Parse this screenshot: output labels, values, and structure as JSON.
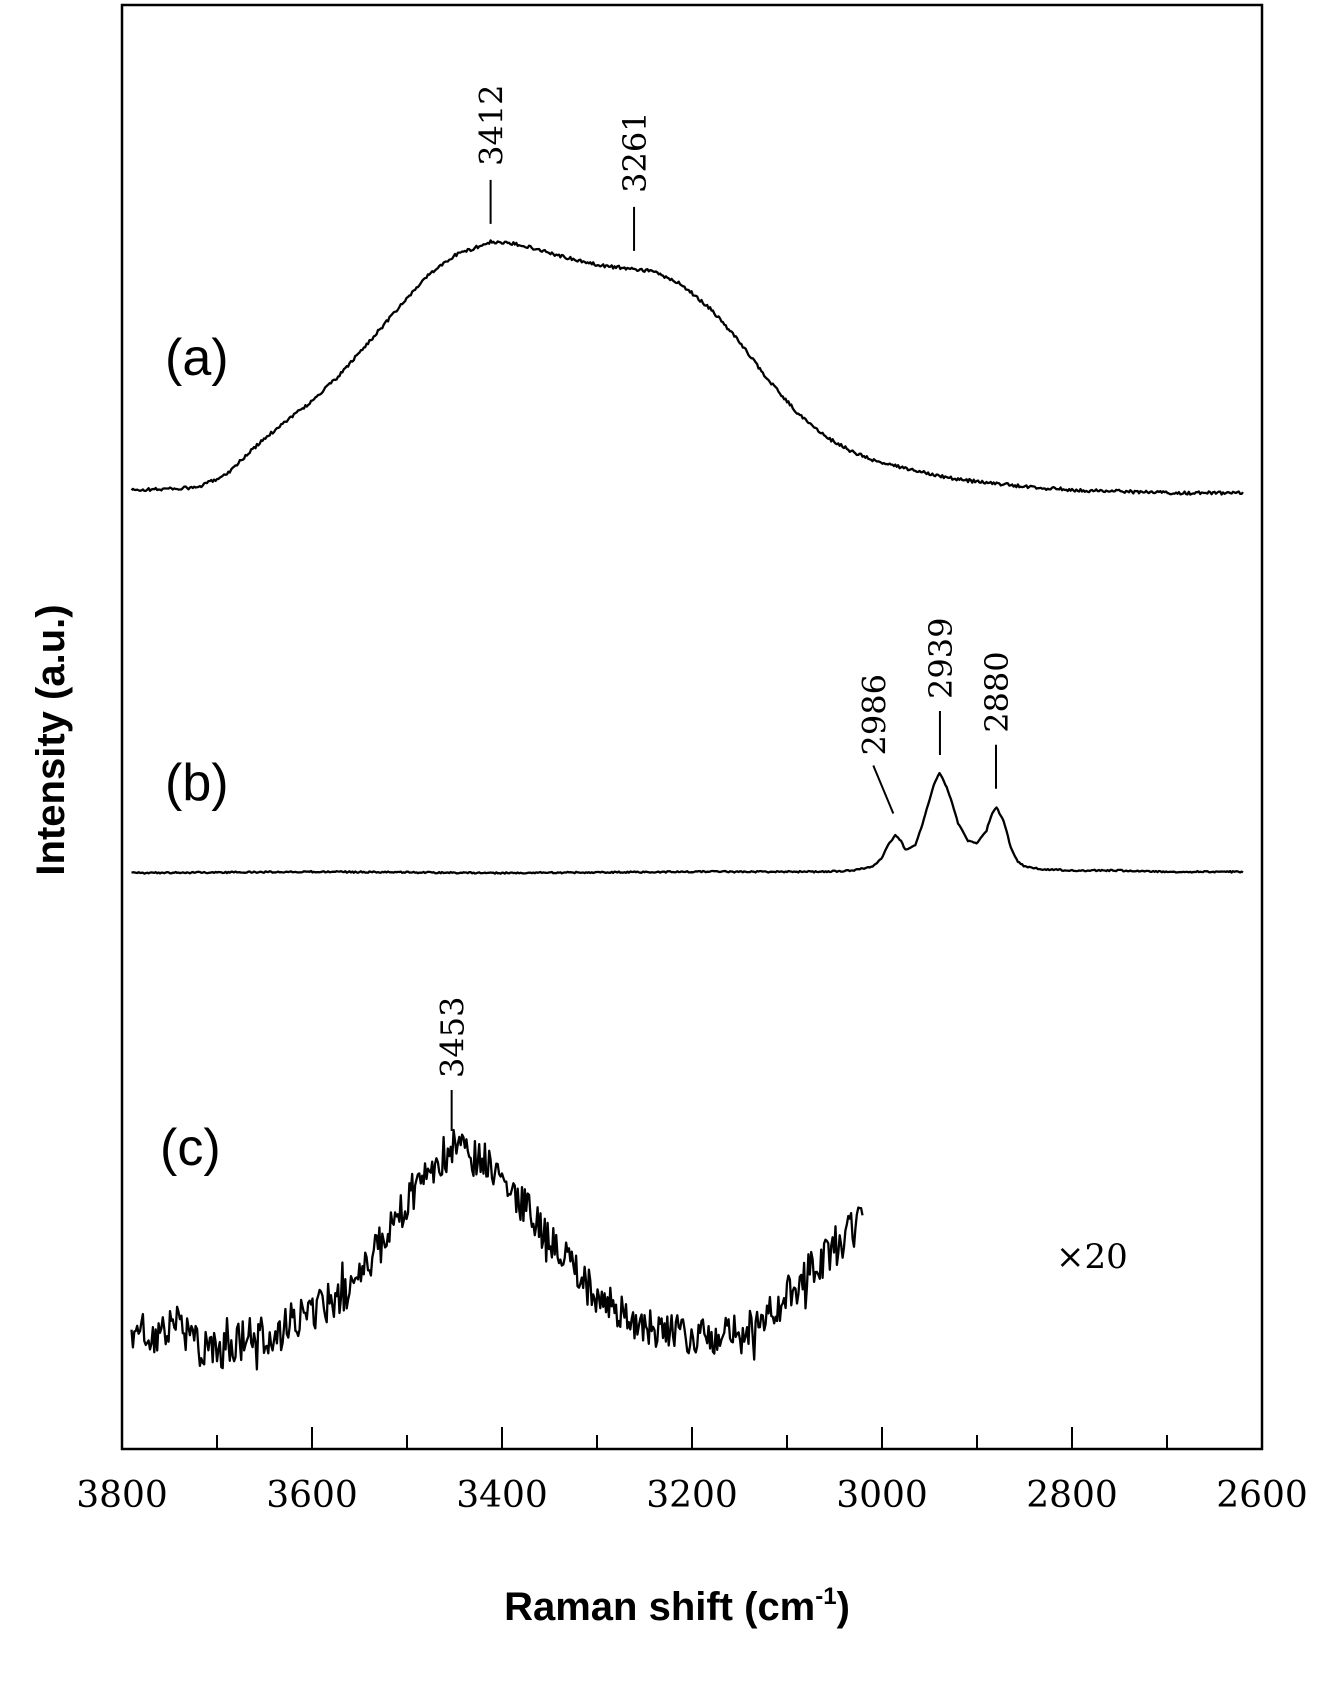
{
  "chart_data": {
    "type": "line",
    "xlabel": "Raman shift (cm",
    "xlabel_sup": "-1",
    "xlabel_close": ")",
    "ylabel": "Intensity (a.u.)",
    "xlim": [
      3800,
      2600
    ],
    "x_reversed": true,
    "x_ticks": [
      3800,
      3600,
      3400,
      3200,
      3000,
      2800,
      2600
    ],
    "x_minor_ticks": [
      3700,
      3500,
      3300,
      3100,
      2900,
      2700
    ],
    "y_ticks": "none",
    "grid": false,
    "series": [
      {
        "label": "(a)",
        "x": [
          3790,
          3720,
          3690,
          3660,
          3630,
          3600,
          3570,
          3540,
          3510,
          3480,
          3450,
          3412,
          3380,
          3350,
          3320,
          3290,
          3261,
          3240,
          3210,
          3180,
          3150,
          3120,
          3090,
          3060,
          3030,
          3000,
          2960,
          2920,
          2880,
          2840,
          2790,
          2740,
          2690,
          2620
        ],
        "y": [
          0.01,
          0.02,
          0.07,
          0.17,
          0.26,
          0.34,
          0.44,
          0.56,
          0.68,
          0.8,
          0.88,
          0.93,
          0.92,
          0.89,
          0.86,
          0.84,
          0.83,
          0.82,
          0.77,
          0.68,
          0.56,
          0.42,
          0.3,
          0.21,
          0.15,
          0.11,
          0.08,
          0.05,
          0.035,
          0.02,
          0.01,
          0.005,
          0.0,
          0.0
        ],
        "peak_labels": [
          3412,
          3261
        ]
      },
      {
        "label": "(b)",
        "x": [
          3790,
          3600,
          3400,
          3200,
          3060,
          3030,
          3010,
          3000,
          2994,
          2986,
          2980,
          2975,
          2965,
          2955,
          2945,
          2939,
          2930,
          2920,
          2910,
          2900,
          2890,
          2885,
          2880,
          2872,
          2865,
          2858,
          2850,
          2830,
          2800,
          2750,
          2700,
          2620
        ],
        "y": [
          0.0,
          0.01,
          0.0,
          0.01,
          0.01,
          0.02,
          0.05,
          0.12,
          0.22,
          0.3,
          0.26,
          0.18,
          0.22,
          0.45,
          0.72,
          0.8,
          0.65,
          0.4,
          0.26,
          0.24,
          0.34,
          0.46,
          0.53,
          0.42,
          0.22,
          0.1,
          0.05,
          0.03,
          0.02,
          0.02,
          0.01,
          0.01
        ],
        "peak_labels": [
          2986,
          2939,
          2880
        ]
      },
      {
        "label": "(c)",
        "annotation": "×20",
        "x": [
          3790,
          3760,
          3740,
          3720,
          3700,
          3680,
          3660,
          3640,
          3620,
          3600,
          3580,
          3560,
          3540,
          3520,
          3500,
          3480,
          3460,
          3453,
          3440,
          3420,
          3400,
          3380,
          3360,
          3340,
          3320,
          3300,
          3280,
          3260,
          3240,
          3220,
          3200,
          3180,
          3160,
          3140,
          3120,
          3100,
          3080,
          3060,
          3040,
          3020
        ],
        "y": [
          0.22,
          0.2,
          0.24,
          0.16,
          0.14,
          0.17,
          0.2,
          0.18,
          0.25,
          0.28,
          0.31,
          0.36,
          0.44,
          0.54,
          0.65,
          0.74,
          0.8,
          0.82,
          0.81,
          0.78,
          0.72,
          0.64,
          0.55,
          0.48,
          0.4,
          0.33,
          0.28,
          0.24,
          0.22,
          0.21,
          0.2,
          0.19,
          0.2,
          0.23,
          0.27,
          0.33,
          0.4,
          0.46,
          0.52,
          0.58
        ],
        "noise": 0.13,
        "peak_labels": [
          3453
        ]
      }
    ]
  }
}
